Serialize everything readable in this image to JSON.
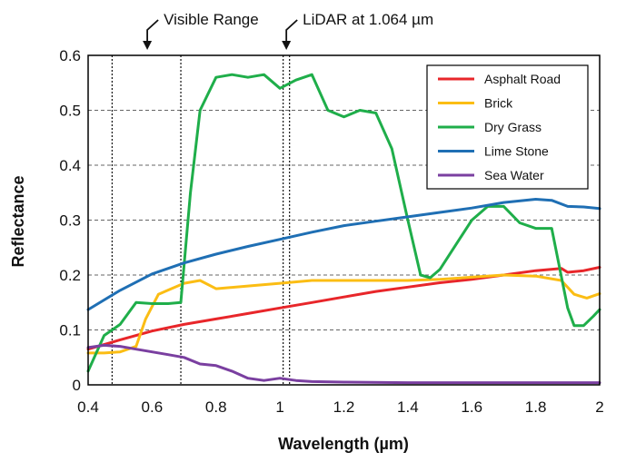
{
  "chart_data": {
    "type": "line",
    "title": "",
    "xlabel": "Wavelength (µm)",
    "ylabel": "Reflectance",
    "xlim": [
      0.4,
      2.0
    ],
    "ylim": [
      0,
      0.6
    ],
    "x_ticks": [
      "0.4",
      "0.6",
      "0.8",
      "1",
      "1.2",
      "1.4",
      "1.6",
      "1.8",
      "2"
    ],
    "y_ticks": [
      "0",
      "0.1",
      "0.2",
      "0.3",
      "0.4",
      "0.5",
      "0.6"
    ],
    "grid": "horizontal dashed",
    "legend_position": "top-right",
    "annotations": [
      {
        "text": "Visible Range",
        "x": 0.585
      },
      {
        "text": "LiDAR at 1.064 µm",
        "x": 1.02
      }
    ],
    "reference_lines": [
      0.475,
      0.69,
      1.01,
      1.03
    ],
    "series": [
      {
        "name": "Asphalt Road",
        "color": "#e8262a",
        "x": [
          0.4,
          0.5,
          0.6,
          0.7,
          0.8,
          0.9,
          1.0,
          1.1,
          1.2,
          1.3,
          1.4,
          1.5,
          1.6,
          1.7,
          1.8,
          1.88,
          1.9,
          1.95,
          2.0
        ],
        "y": [
          0.065,
          0.082,
          0.098,
          0.11,
          0.12,
          0.13,
          0.14,
          0.15,
          0.16,
          0.17,
          0.178,
          0.186,
          0.192,
          0.2,
          0.208,
          0.212,
          0.205,
          0.208,
          0.214
        ]
      },
      {
        "name": "Brick",
        "color": "#fbbd14",
        "x": [
          0.4,
          0.45,
          0.5,
          0.55,
          0.58,
          0.62,
          0.66,
          0.7,
          0.75,
          0.8,
          0.9,
          1.0,
          1.1,
          1.2,
          1.3,
          1.4,
          1.5,
          1.6,
          1.7,
          1.8,
          1.88,
          1.92,
          1.96,
          2.0
        ],
        "y": [
          0.058,
          0.058,
          0.06,
          0.07,
          0.12,
          0.165,
          0.175,
          0.185,
          0.19,
          0.175,
          0.18,
          0.185,
          0.19,
          0.19,
          0.19,
          0.19,
          0.192,
          0.196,
          0.2,
          0.198,
          0.19,
          0.165,
          0.158,
          0.166
        ]
      },
      {
        "name": "Dry Grass",
        "color": "#1fae4a",
        "x": [
          0.4,
          0.45,
          0.5,
          0.55,
          0.6,
          0.65,
          0.69,
          0.72,
          0.75,
          0.8,
          0.85,
          0.9,
          0.95,
          1.0,
          1.05,
          1.1,
          1.15,
          1.2,
          1.25,
          1.3,
          1.35,
          1.4,
          1.44,
          1.47,
          1.5,
          1.55,
          1.6,
          1.65,
          1.7,
          1.75,
          1.8,
          1.85,
          1.9,
          1.92,
          1.95,
          1.98,
          2.0
        ],
        "y": [
          0.025,
          0.09,
          0.11,
          0.15,
          0.148,
          0.148,
          0.15,
          0.35,
          0.5,
          0.56,
          0.565,
          0.56,
          0.565,
          0.54,
          0.555,
          0.565,
          0.5,
          0.488,
          0.5,
          0.495,
          0.43,
          0.3,
          0.2,
          0.195,
          0.21,
          0.255,
          0.3,
          0.325,
          0.325,
          0.295,
          0.285,
          0.285,
          0.14,
          0.108,
          0.108,
          0.125,
          0.137
        ]
      },
      {
        "name": "Lime Stone",
        "color": "#1f6fb4",
        "x": [
          0.4,
          0.5,
          0.6,
          0.7,
          0.8,
          0.9,
          1.0,
          1.1,
          1.2,
          1.3,
          1.4,
          1.5,
          1.6,
          1.7,
          1.8,
          1.85,
          1.9,
          1.95,
          2.0
        ],
        "y": [
          0.137,
          0.172,
          0.202,
          0.222,
          0.238,
          0.252,
          0.265,
          0.278,
          0.29,
          0.298,
          0.306,
          0.314,
          0.322,
          0.332,
          0.338,
          0.336,
          0.325,
          0.324,
          0.321
        ]
      },
      {
        "name": "Sea Water",
        "color": "#7a3fa0",
        "x": [
          0.4,
          0.45,
          0.5,
          0.55,
          0.6,
          0.65,
          0.7,
          0.75,
          0.8,
          0.85,
          0.9,
          0.95,
          1.0,
          1.05,
          1.1,
          1.2,
          1.4,
          1.6,
          1.8,
          2.0
        ],
        "y": [
          0.068,
          0.072,
          0.07,
          0.065,
          0.06,
          0.055,
          0.05,
          0.038,
          0.035,
          0.025,
          0.012,
          0.008,
          0.012,
          0.008,
          0.006,
          0.005,
          0.004,
          0.004,
          0.004,
          0.004
        ]
      }
    ]
  }
}
